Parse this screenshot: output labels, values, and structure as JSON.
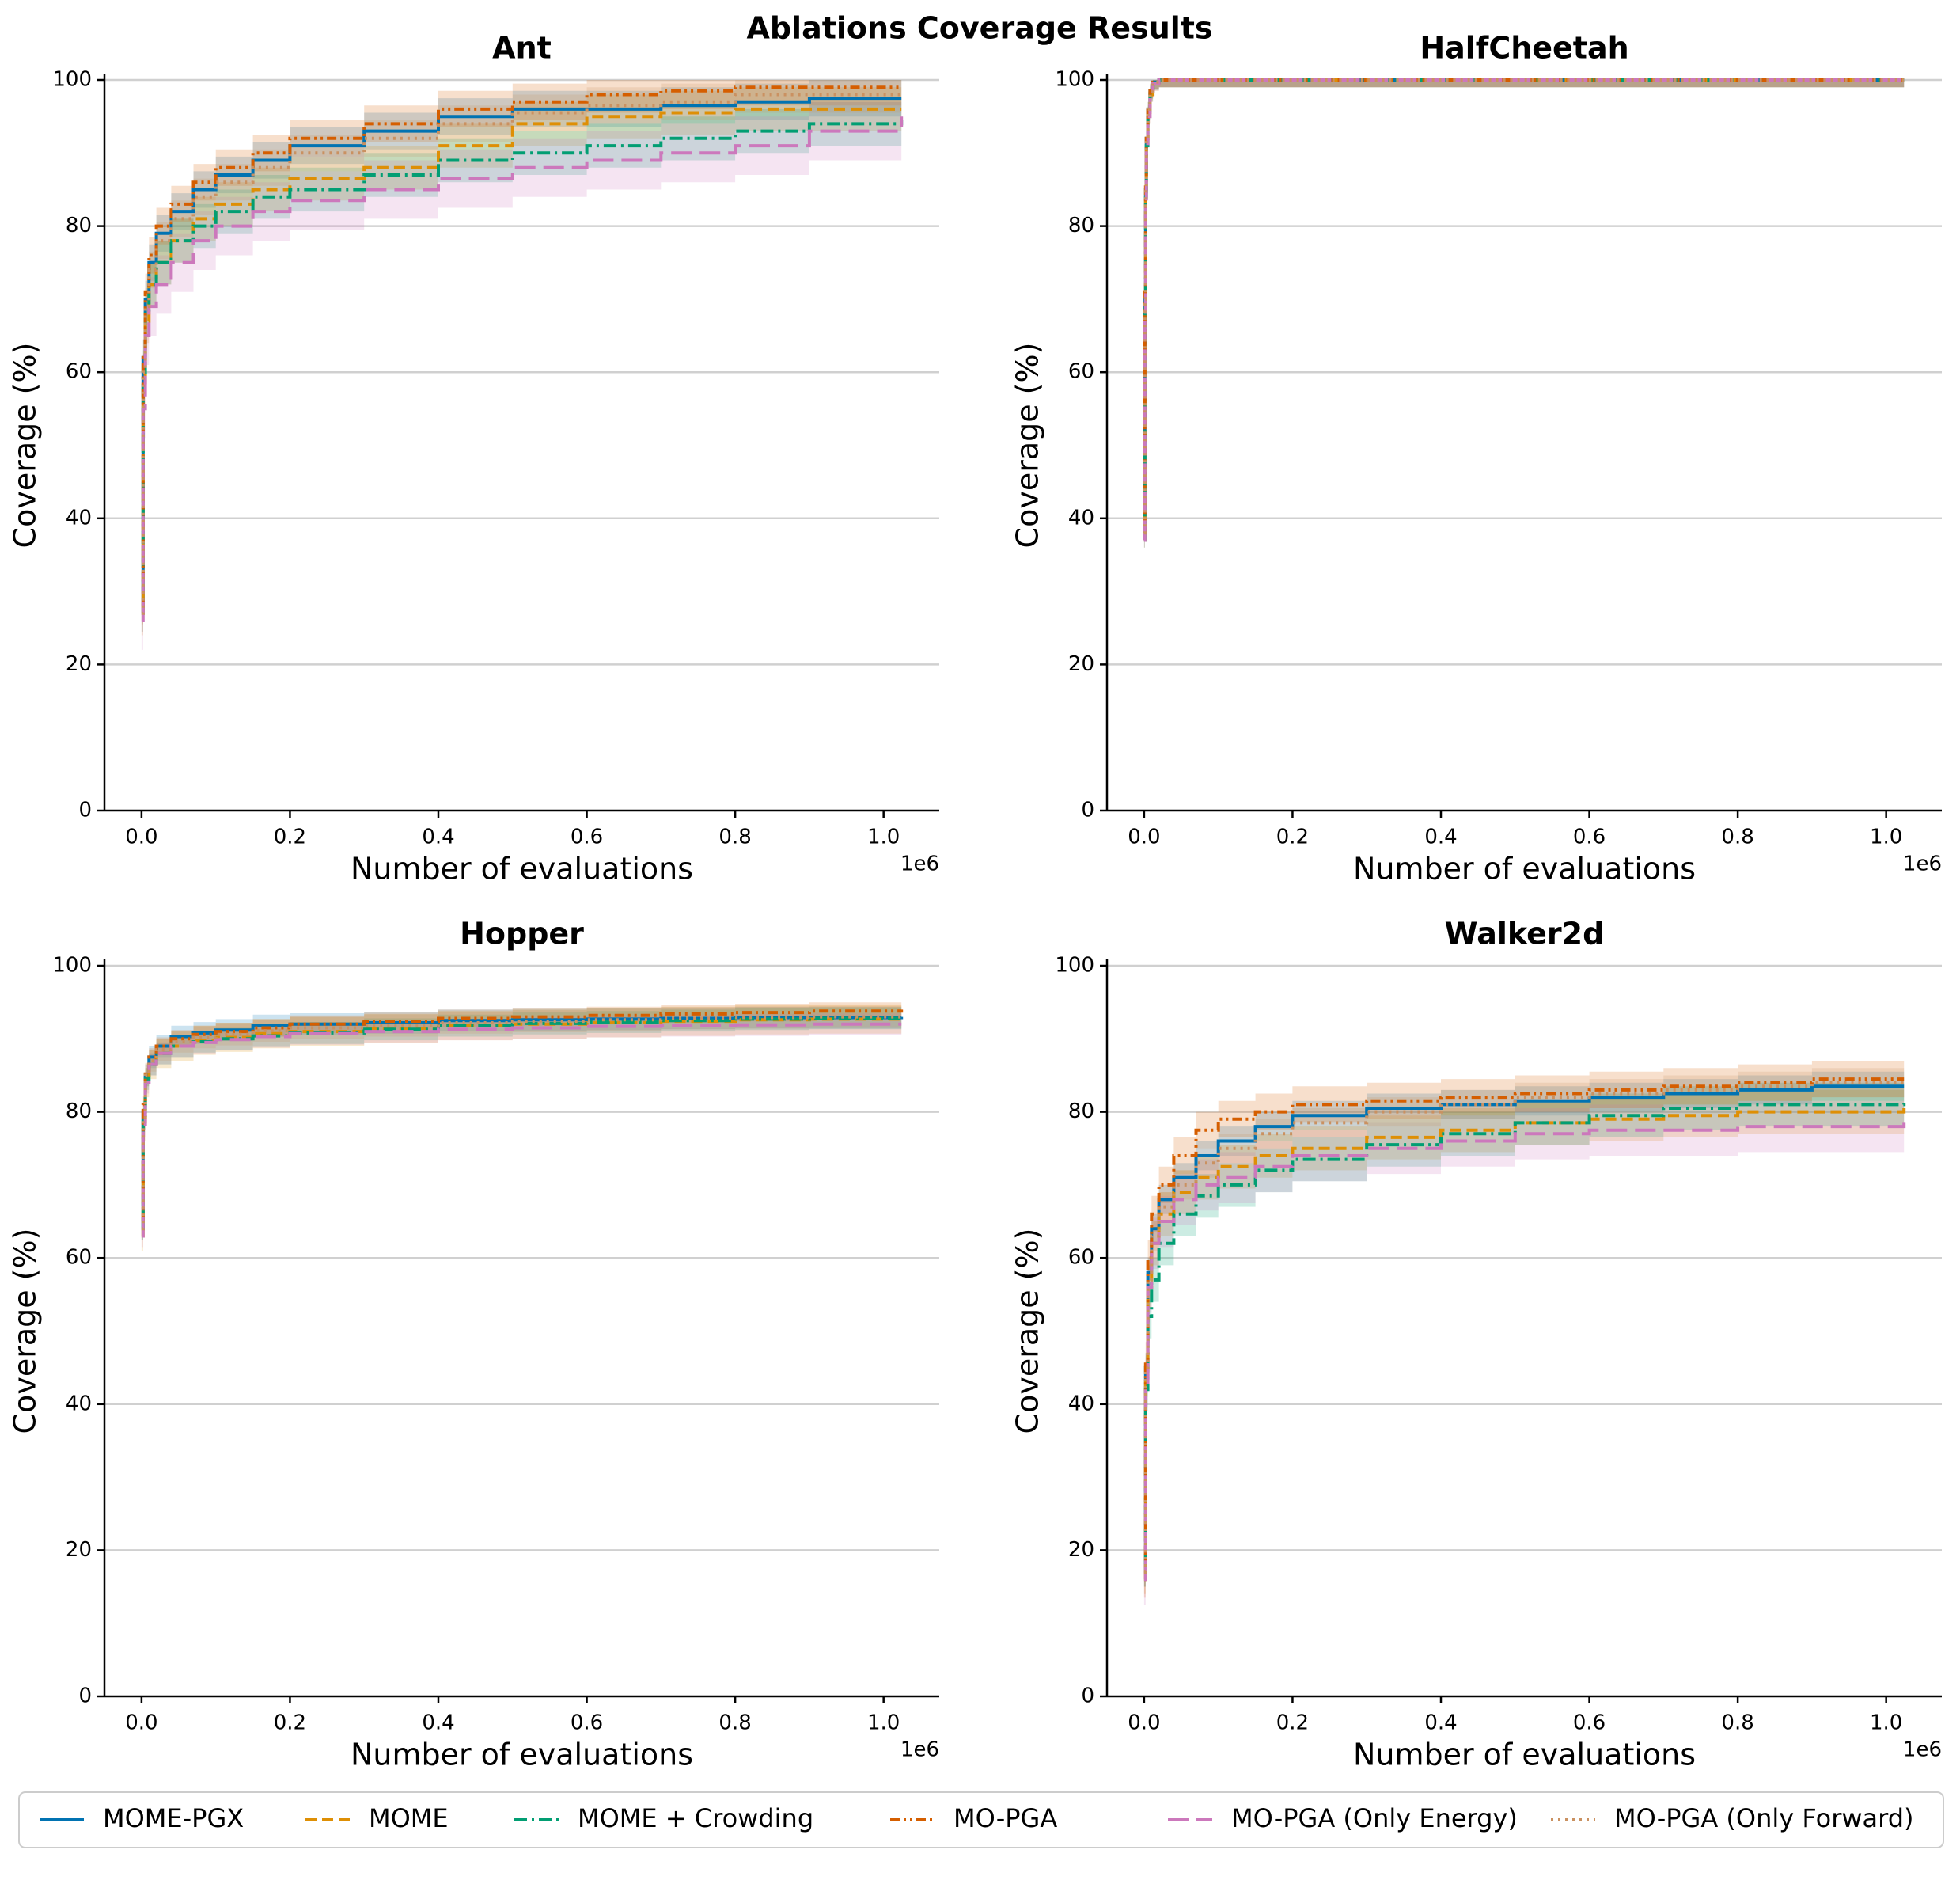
{
  "figure_title": "Ablations Coverage Results",
  "legend": [
    {
      "name": "MOME-PGX",
      "color": "#0173b2",
      "dash": "solid"
    },
    {
      "name": "MOME",
      "color": "#de8f05",
      "dash": "dashed"
    },
    {
      "name": "MOME + Crowding",
      "color": "#029e73",
      "dash": "dashdot"
    },
    {
      "name": "MO-PGA",
      "color": "#d55e00",
      "dash": "dashdotdot"
    },
    {
      "name": "MO-PGA (Only Energy)",
      "color": "#cc78bc",
      "dash": "longdash"
    },
    {
      "name": "MO-PGA (Only Forward)",
      "color": "#ca9161",
      "dash": "dotted"
    }
  ],
  "chart_data": [
    {
      "type": "line",
      "title": "Ant",
      "xlabel": "Number of evaluations",
      "ylabel": "Coverage (%)",
      "x_offset_label": "1e6",
      "xlim": [
        -0.05,
        1.075
      ],
      "ylim": [
        0,
        100
      ],
      "xticks": [
        0.0,
        0.2,
        0.4,
        0.6,
        0.8,
        1.0
      ],
      "xtick_labels": [
        "0.0",
        "0.2",
        "0.4",
        "0.6",
        "0.8",
        "1.0"
      ],
      "yticks": [
        0,
        20,
        40,
        60,
        80,
        100
      ],
      "grid": "horizontal",
      "x": [
        0,
        0.002,
        0.005,
        0.01,
        0.02,
        0.04,
        0.07,
        0.1,
        0.15,
        0.2,
        0.3,
        0.4,
        0.5,
        0.6,
        0.7,
        0.8,
        0.9,
        1.024
      ],
      "series": [
        {
          "name": "MOME-PGX",
          "values": [
            27,
            62,
            70,
            75,
            79,
            82,
            85,
            87,
            89,
            91,
            93,
            95,
            96,
            96,
            96.5,
            97,
            97.5,
            97.5
          ],
          "band": 2.5
        },
        {
          "name": "MOME",
          "values": [
            27,
            58,
            67,
            72,
            75,
            78,
            81,
            83,
            85,
            86.5,
            88,
            91,
            94,
            95,
            95.5,
            96,
            96,
            96
          ],
          "band": 3
        },
        {
          "name": "MOME + Crowding",
          "values": [
            30,
            60,
            68,
            72,
            75,
            78,
            80,
            82,
            84,
            85,
            87,
            89,
            90,
            91,
            92,
            93,
            94,
            94.5
          ],
          "band": 3
        },
        {
          "name": "MO-PGA",
          "values": [
            28,
            62,
            71,
            76,
            80,
            83,
            86,
            88,
            90,
            92,
            94,
            96,
            97,
            98,
            98.5,
            99,
            99,
            99
          ],
          "band": 2.5
        },
        {
          "name": "MO-PGA (Only Energy)",
          "values": [
            26,
            55,
            65,
            69,
            72,
            75,
            78,
            80,
            82,
            83.5,
            85,
            86.5,
            88,
            89,
            90,
            91,
            93,
            95
          ],
          "band": 4
        },
        {
          "name": "MO-PGA (Only Forward)",
          "values": [
            27,
            60,
            69,
            74,
            78,
            81,
            84,
            86,
            88,
            90,
            92,
            94,
            95.5,
            96.5,
            97,
            98,
            98,
            98
          ],
          "band": 2.5
        }
      ]
    },
    {
      "type": "line",
      "title": "HalfCheetah",
      "xlabel": "Number of evaluations",
      "ylabel": "Coverage (%)",
      "x_offset_label": "1e6",
      "xlim": [
        -0.05,
        1.075
      ],
      "ylim": [
        0,
        100
      ],
      "xticks": [
        0.0,
        0.2,
        0.4,
        0.6,
        0.8,
        1.0
      ],
      "xtick_labels": [
        "0.0",
        "0.2",
        "0.4",
        "0.6",
        "0.8",
        "1.0"
      ],
      "yticks": [
        0,
        20,
        40,
        60,
        80,
        100
      ],
      "grid": "horizontal",
      "x": [
        0,
        0.001,
        0.002,
        0.003,
        0.005,
        0.008,
        0.012,
        0.02,
        0.05,
        0.2,
        0.5,
        1.024
      ],
      "series": [
        {
          "name": "MOME-PGX",
          "values": [
            38,
            70,
            85,
            92,
            96,
            98.5,
            99.7,
            100,
            100,
            100,
            100,
            100
          ],
          "band": 1
        },
        {
          "name": "MOME",
          "values": [
            37,
            68,
            84,
            91,
            95,
            98,
            99.5,
            100,
            100,
            100,
            100,
            100
          ],
          "band": 1
        },
        {
          "name": "MOME + Crowding",
          "values": [
            37,
            69,
            84,
            91,
            95.5,
            98.2,
            99.6,
            100,
            100,
            100,
            100,
            100
          ],
          "band": 1
        },
        {
          "name": "MO-PGA",
          "values": [
            38,
            71,
            86,
            92,
            96,
            98.5,
            99.7,
            100,
            100,
            100,
            100,
            100
          ],
          "band": 1
        },
        {
          "name": "MO-PGA (Only Energy)",
          "values": [
            37,
            68,
            83,
            90.5,
            95,
            98,
            99.5,
            100,
            100,
            100,
            100,
            100
          ],
          "band": 1
        },
        {
          "name": "MO-PGA (Only Forward)",
          "values": [
            38,
            70,
            85,
            92,
            96,
            98.4,
            99.7,
            100,
            100,
            100,
            100,
            100
          ],
          "band": 1
        }
      ]
    },
    {
      "type": "line",
      "title": "Hopper",
      "xlabel": "Number of evaluations",
      "ylabel": "Coverage (%)",
      "x_offset_label": "1e6",
      "xlim": [
        -0.05,
        1.075
      ],
      "ylim": [
        0,
        100
      ],
      "xticks": [
        0.0,
        0.2,
        0.4,
        0.6,
        0.8,
        1.0
      ],
      "xtick_labels": [
        "0.0",
        "0.2",
        "0.4",
        "0.6",
        "0.8",
        "1.0"
      ],
      "yticks": [
        0,
        20,
        40,
        60,
        80,
        100
      ],
      "grid": "horizontal",
      "x": [
        0,
        0.002,
        0.005,
        0.01,
        0.02,
        0.04,
        0.07,
        0.1,
        0.15,
        0.2,
        0.3,
        0.4,
        0.5,
        0.6,
        0.7,
        0.8,
        0.9,
        1.024
      ],
      "series": [
        {
          "name": "MOME-PGX",
          "values": [
            64,
            80,
            85,
            87.5,
            89,
            90.3,
            90.8,
            91.2,
            91.8,
            92,
            92.2,
            92.5,
            92.6,
            92.7,
            92.8,
            92.9,
            92.9,
            93
          ],
          "band": 1.5
        },
        {
          "name": "MOME",
          "values": [
            63,
            78,
            84,
            86.5,
            88,
            89,
            89.8,
            90.2,
            90.7,
            91,
            91.4,
            91.8,
            92,
            92.2,
            92.4,
            92.6,
            92.7,
            92.8
          ],
          "band": 2
        },
        {
          "name": "MOME + Crowding",
          "values": [
            64,
            79,
            84.5,
            86.5,
            88,
            89,
            89.6,
            90,
            90.4,
            90.8,
            91.3,
            91.8,
            92.1,
            92.3,
            92.5,
            92.7,
            92.8,
            93
          ],
          "band": 1.5
        },
        {
          "name": "MO-PGA",
          "values": [
            65,
            81,
            85.5,
            87.5,
            89,
            90,
            90.6,
            91,
            91.5,
            92,
            92.4,
            92.8,
            93,
            93.2,
            93.4,
            93.6,
            93.8,
            94
          ],
          "band": 1.2
        },
        {
          "name": "MO-PGA (Only Energy)",
          "values": [
            63,
            78,
            84,
            86.5,
            88,
            89,
            89.5,
            89.9,
            90.3,
            90.7,
            91,
            91.3,
            91.5,
            91.7,
            91.8,
            91.9,
            92,
            92
          ],
          "band": 1.5
        },
        {
          "name": "MO-PGA (Only Forward)",
          "values": [
            64,
            79,
            85,
            87,
            88.5,
            89.6,
            90.2,
            90.6,
            91.1,
            91.5,
            91.8,
            92.2,
            92.4,
            92.6,
            92.8,
            92.9,
            93,
            93
          ],
          "band": 1.5
        }
      ]
    },
    {
      "type": "line",
      "title": "Walker2d",
      "xlabel": "Number of evaluations",
      "ylabel": "Coverage (%)",
      "x_offset_label": "1e6",
      "xlim": [
        -0.05,
        1.075
      ],
      "ylim": [
        0,
        100
      ],
      "xticks": [
        0.0,
        0.2,
        0.4,
        0.6,
        0.8,
        1.0
      ],
      "xtick_labels": [
        "0.0",
        "0.2",
        "0.4",
        "0.6",
        "0.8",
        "1.0"
      ],
      "yticks": [
        0,
        20,
        40,
        60,
        80,
        100
      ],
      "grid": "horizontal",
      "x": [
        0,
        0.002,
        0.005,
        0.01,
        0.02,
        0.04,
        0.07,
        0.1,
        0.15,
        0.2,
        0.3,
        0.4,
        0.5,
        0.6,
        0.7,
        0.8,
        0.9,
        1.024
      ],
      "series": [
        {
          "name": "MOME-PGX",
          "values": [
            17,
            45,
            58,
            64,
            68,
            71,
            74,
            76,
            78,
            79.5,
            80.5,
            81,
            81.5,
            82,
            82.5,
            83,
            83.5,
            83.5
          ],
          "band": 2
        },
        {
          "name": "MOME",
          "values": [
            17,
            44,
            56,
            62,
            66,
            69,
            71,
            72.5,
            74,
            75,
            76.5,
            77.5,
            78.5,
            79,
            79.5,
            80,
            80,
            80.5
          ],
          "band": 3
        },
        {
          "name": "MOME + Crowding",
          "values": [
            18,
            42,
            52,
            57,
            62,
            66,
            68.5,
            70,
            72,
            73.5,
            75.5,
            77,
            78.5,
            79.5,
            80.5,
            81,
            81,
            81.5
          ],
          "band": 3
        },
        {
          "name": "MO-PGA",
          "values": [
            16,
            46,
            60,
            66,
            70,
            74,
            77.5,
            79,
            80,
            81,
            81.5,
            82,
            82.5,
            83,
            83.5,
            84,
            84.5,
            84.5
          ],
          "band": 2.5
        },
        {
          "name": "MO-PGA (Only Energy)",
          "values": [
            16,
            43,
            56,
            62,
            65,
            68,
            70,
            71,
            72.5,
            74,
            75,
            76,
            77,
            77.5,
            77.5,
            78,
            78,
            78.5
          ],
          "band": 3.5
        },
        {
          "name": "MO-PGA (Only Forward)",
          "values": [
            17,
            45,
            57,
            63,
            67,
            70,
            73,
            75,
            77,
            78.5,
            80,
            81,
            82,
            82.5,
            83,
            83.5,
            84,
            84.5
          ],
          "band": 2
        }
      ]
    }
  ]
}
